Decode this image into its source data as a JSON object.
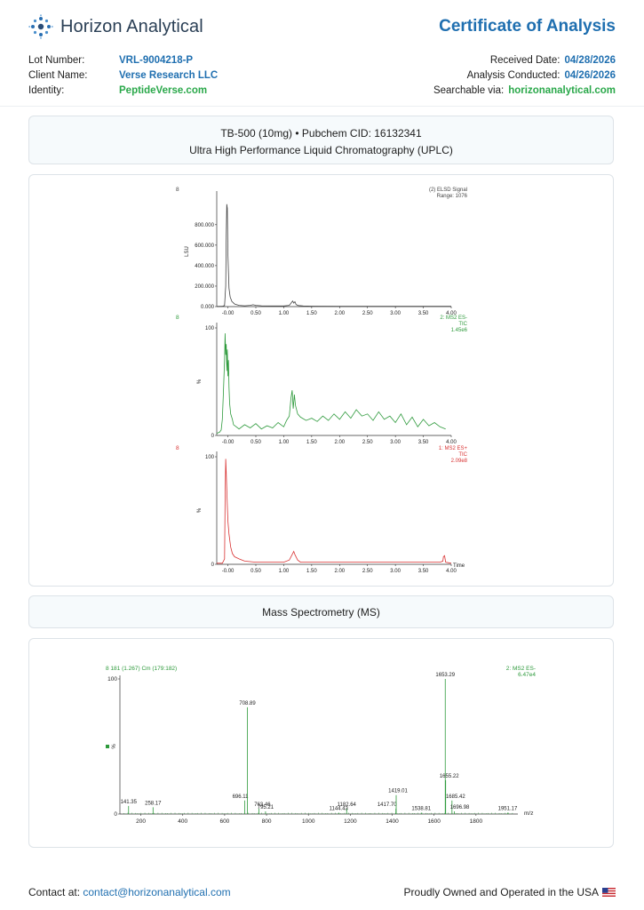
{
  "header": {
    "brand": "Horizon Analytical",
    "title": "Certificate of Analysis"
  },
  "meta": {
    "lot_label": "Lot Number:",
    "lot_value": "VRL-9004218-P",
    "client_label": "Client Name:",
    "client_value": "Verse Research LLC",
    "identity_label": "Identity:",
    "identity_value": "PeptideVerse.com",
    "received_label": "Received Date:",
    "received_value": "04/28/2026",
    "analysis_label": "Analysis Conducted:",
    "analysis_value": "04/26/2026",
    "search_label": "Searchable via:",
    "search_value": "horizonanalytical.com"
  },
  "sections": {
    "uplc_line1": "TB-500 (10mg) • Pubchem CID: 16132341",
    "uplc_line2": "Ultra High Performance Liquid Chromatography (UPLC)",
    "ms_title": "Mass Spectrometry (MS)"
  },
  "footer": {
    "contact_label": "Contact at:",
    "contact_email": "contact@horizonanalytical.com",
    "origin": "Proudly Owned and Operated in the USA"
  },
  "colors": {
    "elsd": "#444444",
    "es_minus": "#2e9a3c",
    "es_plus": "#d83232",
    "ms": "#2e9a3c",
    "brand_blue": "#1f6fb0",
    "value_green": "#2aa84a"
  },
  "chart_data": [
    {
      "type": "line",
      "id": "elsd",
      "panel_label": "8",
      "legend": [
        "(2) ELSD Signal",
        "Range: 1076"
      ],
      "ylabel": "LSU",
      "xlim": [
        -0.2,
        4.0
      ],
      "ylim": [
        0,
        1076
      ],
      "xticks": [
        "-0.00",
        "0.50",
        "1.00",
        "1.50",
        "2.00",
        "2.50",
        "3.00",
        "3.50",
        "4.00"
      ],
      "yticks": [
        "0.000",
        "200.000",
        "400.000",
        "600.000",
        "800.000"
      ],
      "x": [
        -0.2,
        -0.1,
        -0.06,
        -0.04,
        -0.03,
        -0.02,
        -0.01,
        0.0,
        0.02,
        0.04,
        0.07,
        0.12,
        0.2,
        0.3,
        0.4,
        0.45,
        0.5,
        0.6,
        0.8,
        1.0,
        1.1,
        1.14,
        1.16,
        1.18,
        1.2,
        1.22,
        1.26,
        1.35,
        1.5,
        2.0,
        2.5,
        3.0,
        3.5,
        3.85,
        3.9,
        4.0
      ],
      "y": [
        2,
        3,
        10,
        200,
        700,
        1000,
        960,
        500,
        180,
        95,
        50,
        25,
        12,
        8,
        12,
        18,
        12,
        8,
        6,
        6,
        12,
        40,
        55,
        35,
        48,
        20,
        10,
        6,
        4,
        3,
        3,
        3,
        3,
        3,
        3,
        3
      ]
    },
    {
      "type": "line",
      "id": "ms2_es_minus",
      "panel_label": "8",
      "legend": [
        "2: MS2 ES-",
        "TIC",
        "1.45e6"
      ],
      "ylabel": "%",
      "xlim": [
        -0.2,
        4.0
      ],
      "ylim": [
        0,
        100
      ],
      "xticks": [
        "-0.00",
        "0.50",
        "1.00",
        "1.50",
        "2.00",
        "2.50",
        "3.00",
        "3.50",
        "4.00"
      ],
      "yticks": [
        "0",
        "100"
      ],
      "x": [
        -0.2,
        -0.15,
        -0.12,
        -0.1,
        -0.08,
        -0.06,
        -0.05,
        -0.04,
        -0.03,
        -0.02,
        -0.01,
        0.0,
        0.01,
        0.02,
        0.03,
        0.05,
        0.08,
        0.1,
        0.15,
        0.2,
        0.3,
        0.4,
        0.5,
        0.6,
        0.7,
        0.8,
        0.9,
        1.0,
        1.05,
        1.1,
        1.13,
        1.15,
        1.17,
        1.19,
        1.21,
        1.25,
        1.3,
        1.4,
        1.5,
        1.6,
        1.7,
        1.8,
        1.9,
        2.0,
        2.1,
        2.2,
        2.3,
        2.4,
        2.5,
        2.6,
        2.7,
        2.8,
        2.9,
        3.0,
        3.1,
        3.2,
        3.3,
        3.4,
        3.5,
        3.6,
        3.7,
        3.8,
        3.9
      ],
      "y": [
        2,
        3,
        5,
        15,
        40,
        70,
        95,
        75,
        85,
        60,
        80,
        55,
        70,
        45,
        30,
        20,
        15,
        10,
        8,
        6,
        10,
        7,
        11,
        6,
        9,
        7,
        12,
        8,
        14,
        18,
        35,
        42,
        25,
        38,
        28,
        20,
        17,
        14,
        16,
        13,
        18,
        14,
        20,
        15,
        22,
        16,
        24,
        18,
        20,
        14,
        22,
        15,
        18,
        12,
        20,
        10,
        17,
        8,
        15,
        9,
        12,
        8,
        6
      ]
    },
    {
      "type": "line",
      "id": "ms2_es_plus",
      "panel_label": "8",
      "legend": [
        "1: MS2 ES+",
        "TIC",
        "2.09e8"
      ],
      "ylabel": "%",
      "xlabel": "Time",
      "xlim": [
        -0.2,
        4.0
      ],
      "ylim": [
        0,
        100
      ],
      "xticks": [
        "-0.00",
        "0.50",
        "1.00",
        "1.50",
        "2.00",
        "2.50",
        "3.00",
        "3.50",
        "4.00"
      ],
      "yticks": [
        "0",
        "100"
      ],
      "x": [
        -0.2,
        -0.1,
        -0.06,
        -0.05,
        -0.04,
        -0.03,
        -0.02,
        -0.01,
        0.0,
        0.02,
        0.05,
        0.08,
        0.12,
        0.2,
        0.3,
        0.5,
        0.8,
        1.0,
        1.1,
        1.15,
        1.18,
        1.2,
        1.25,
        1.3,
        1.5,
        2.0,
        2.5,
        3.0,
        3.5,
        3.8,
        3.85,
        3.86,
        3.88,
        3.9,
        4.0
      ],
      "y": [
        1,
        1,
        5,
        60,
        98,
        85,
        70,
        55,
        40,
        28,
        16,
        10,
        7,
        5,
        3,
        2,
        2,
        2,
        4,
        9,
        12,
        9,
        4,
        2,
        2,
        2,
        2,
        2,
        2,
        2,
        3,
        7,
        8,
        2,
        1
      ]
    },
    {
      "type": "bar",
      "id": "ms_spectrum",
      "panel_label": "8 181 (1.267) Cm (179:182)",
      "legend": [
        "2: MS2 ES-",
        "6.47e4"
      ],
      "xlabel": "m/z",
      "ylabel": "%",
      "xlim": [
        100,
        2000
      ],
      "ylim": [
        0,
        100
      ],
      "xticks": [
        "200",
        "400",
        "600",
        "800",
        "1000",
        "1200",
        "1400",
        "1600",
        "1800"
      ],
      "yticks": [
        "0",
        "100"
      ],
      "peaks": [
        {
          "mz": 141.35,
          "y": 6,
          "label": "141.35"
        },
        {
          "mz": 258.17,
          "y": 5,
          "label": "258.17"
        },
        {
          "mz": 696.11,
          "y": 10,
          "label": "696.11"
        },
        {
          "mz": 708.89,
          "y": 79,
          "label": "708.89"
        },
        {
          "mz": 763.46,
          "y": 4,
          "label": "763.46"
        },
        {
          "mz": 795.21,
          "y": 2,
          "label": "795.21"
        },
        {
          "mz": 1144.43,
          "y": 1,
          "label": "1144.43"
        },
        {
          "mz": 1182.64,
          "y": 4,
          "label": "1182.64"
        },
        {
          "mz": 1417.7,
          "y": 4,
          "label": "1417.70"
        },
        {
          "mz": 1419.01,
          "y": 14,
          "label": "1419.01"
        },
        {
          "mz": 1538.81,
          "y": 1,
          "label": "1538.81"
        },
        {
          "mz": 1653.29,
          "y": 100,
          "label": "1653.29"
        },
        {
          "mz": 1655.22,
          "y": 25,
          "label": "1655.22"
        },
        {
          "mz": 1685.42,
          "y": 10,
          "label": "1685.42"
        },
        {
          "mz": 1696.98,
          "y": 2,
          "label": "1696.98"
        },
        {
          "mz": 1951.17,
          "y": 1,
          "label": "1951.17"
        }
      ]
    }
  ]
}
